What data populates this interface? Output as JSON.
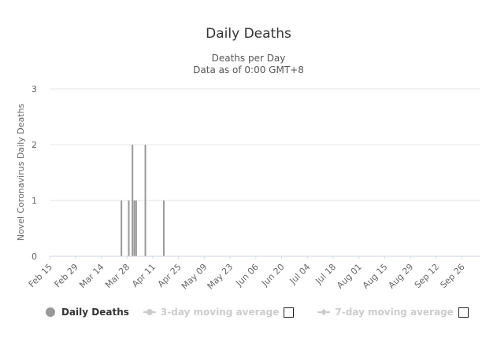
{
  "chart_data": {
    "type": "bar",
    "title": "Daily Deaths",
    "subtitle_lines": [
      "Deaths per Day",
      "Data as of 0:00 GMT+8"
    ],
    "ylabel": "Novel Coronavirus Daily Deaths",
    "xlabel": "",
    "ylim": [
      0,
      3
    ],
    "yticks": [
      0,
      1,
      2,
      3
    ],
    "xrange": [
      "2020-02-15",
      "2020-10-06"
    ],
    "x_tick_labels": [
      {
        "date": "2020-02-15",
        "label": "Feb 15"
      },
      {
        "date": "2020-02-29",
        "label": "Feb 29"
      },
      {
        "date": "2020-03-14",
        "label": "Mar 14"
      },
      {
        "date": "2020-03-28",
        "label": "Mar 28"
      },
      {
        "date": "2020-04-11",
        "label": "Apr 11"
      },
      {
        "date": "2020-04-25",
        "label": "Apr 25"
      },
      {
        "date": "2020-05-09",
        "label": "May 09"
      },
      {
        "date": "2020-05-23",
        "label": "May 23"
      },
      {
        "date": "2020-06-06",
        "label": "Jun 06"
      },
      {
        "date": "2020-06-20",
        "label": "Jun 20"
      },
      {
        "date": "2020-07-04",
        "label": "Jul 04"
      },
      {
        "date": "2020-07-18",
        "label": "Jul 18"
      },
      {
        "date": "2020-08-01",
        "label": "Aug 01"
      },
      {
        "date": "2020-08-15",
        "label": "Aug 15"
      },
      {
        "date": "2020-08-29",
        "label": "Aug 29"
      },
      {
        "date": "2020-09-12",
        "label": "Sep 12"
      },
      {
        "date": "2020-09-26",
        "label": "Sep 26"
      }
    ],
    "series": [
      {
        "name": "Daily Deaths",
        "color": "#999999",
        "points": [
          {
            "x": "2020-03-25",
            "y": 1
          },
          {
            "x": "2020-03-29",
            "y": 1
          },
          {
            "x": "2020-03-31",
            "y": 2
          },
          {
            "x": "2020-04-01",
            "y": 1
          },
          {
            "x": "2020-04-02",
            "y": 1
          },
          {
            "x": "2020-04-07",
            "y": 2
          },
          {
            "x": "2020-04-17",
            "y": 1
          }
        ]
      }
    ],
    "grid": true,
    "legend_position": "bottom-left"
  },
  "legend": {
    "items": [
      {
        "label": "Daily Deaths"
      },
      {
        "label": "3-day moving average"
      },
      {
        "label": "7-day moving average"
      }
    ]
  }
}
